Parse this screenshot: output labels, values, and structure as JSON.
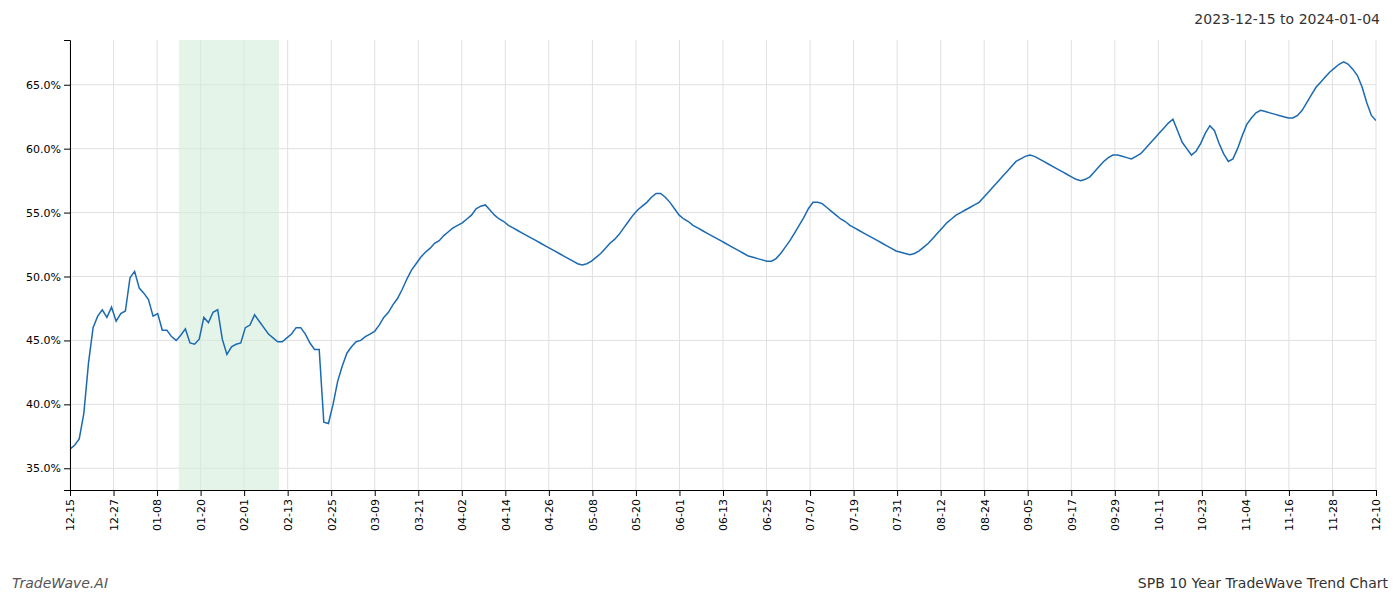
{
  "chart_data": {
    "type": "line",
    "title": "2023-12-15 to 2024-01-04",
    "annotations": [
      "TradeWave.AI",
      "SPB 10 Year TradeWave Trend Chart"
    ],
    "highlight": {
      "x": [
        2.5,
        4.8
      ],
      "color": "#d4edda"
    },
    "grid": true,
    "xlim": [
      0,
      30
    ],
    "xticks": [
      {
        "value": 0,
        "label": "12-15"
      },
      {
        "value": 1,
        "label": "12-27"
      },
      {
        "value": 2,
        "label": "01-08"
      },
      {
        "value": 3,
        "label": "01-20"
      },
      {
        "value": 4,
        "label": "02-01"
      },
      {
        "value": 5,
        "label": "02-13"
      },
      {
        "value": 6,
        "label": "02-25"
      },
      {
        "value": 7,
        "label": "03-09"
      },
      {
        "value": 8,
        "label": "03-21"
      },
      {
        "value": 9,
        "label": "04-02"
      },
      {
        "value": 10,
        "label": "04-14"
      },
      {
        "value": 11,
        "label": "04-26"
      },
      {
        "value": 12,
        "label": "05-08"
      },
      {
        "value": 13,
        "label": "05-20"
      },
      {
        "value": 14,
        "label": "06-01"
      },
      {
        "value": 15,
        "label": "06-13"
      },
      {
        "value": 16,
        "label": "06-25"
      },
      {
        "value": 17,
        "label": "07-07"
      },
      {
        "value": 18,
        "label": "07-19"
      },
      {
        "value": 19,
        "label": "07-31"
      },
      {
        "value": 20,
        "label": "08-12"
      },
      {
        "value": 21,
        "label": "08-24"
      },
      {
        "value": 22,
        "label": "09-05"
      },
      {
        "value": 23,
        "label": "09-17"
      },
      {
        "value": 24,
        "label": "09-29"
      },
      {
        "value": 25,
        "label": "10-11"
      },
      {
        "value": 26,
        "label": "10-23"
      },
      {
        "value": 27,
        "label": "11-04"
      },
      {
        "value": 28,
        "label": "11-16"
      },
      {
        "value": 29,
        "label": "11-28"
      },
      {
        "value": 30,
        "label": "12-10"
      }
    ],
    "ylim": [
      0.333,
      0.685
    ],
    "yticks": [
      {
        "value": 0.35,
        "label": "35.0%"
      },
      {
        "value": 0.4,
        "label": "40.0%"
      },
      {
        "value": 0.45,
        "label": "45.0%"
      },
      {
        "value": 0.5,
        "label": "50.0%"
      },
      {
        "value": 0.55,
        "label": "55.0%"
      },
      {
        "value": 0.6,
        "label": "60.0%"
      },
      {
        "value": 0.65,
        "label": "65.0%"
      }
    ],
    "series": [
      {
        "color": "#1b6ab1",
        "values": [
          0.365,
          0.368,
          0.373,
          0.393,
          0.432,
          0.46,
          0.469,
          0.474,
          0.468,
          0.476,
          0.465,
          0.471,
          0.473,
          0.499,
          0.504,
          0.491,
          0.487,
          0.482,
          0.469,
          0.471,
          0.458,
          0.458,
          0.453,
          0.45,
          0.454,
          0.459,
          0.448,
          0.447,
          0.451,
          0.468,
          0.464,
          0.472,
          0.474,
          0.451,
          0.439,
          0.445,
          0.447,
          0.448,
          0.46,
          0.462,
          0.47,
          0.465,
          0.46,
          0.455,
          0.452,
          0.449,
          0.449,
          0.452,
          0.455,
          0.46,
          0.46,
          0.455,
          0.448,
          0.443,
          0.443,
          0.386,
          0.385,
          0.4,
          0.418,
          0.43,
          0.44,
          0.445,
          0.449,
          0.45,
          0.453,
          0.455,
          0.457,
          0.462,
          0.468,
          0.472,
          0.478,
          0.483,
          0.49,
          0.498,
          0.505,
          0.51,
          0.515,
          0.519,
          0.522,
          0.526,
          0.528,
          0.532,
          0.535,
          0.538,
          0.54,
          0.542,
          0.545,
          0.548,
          0.553,
          0.555,
          0.556,
          0.552,
          0.548,
          0.545,
          0.543,
          0.54,
          0.538,
          0.536,
          0.534,
          0.532,
          0.53,
          0.528,
          0.526,
          0.524,
          0.522,
          0.52,
          0.518,
          0.516,
          0.514,
          0.512,
          0.51,
          0.509,
          0.51,
          0.512,
          0.515,
          0.518,
          0.522,
          0.526,
          0.529,
          0.533,
          0.538,
          0.543,
          0.548,
          0.552,
          0.555,
          0.558,
          0.562,
          0.565,
          0.565,
          0.562,
          0.558,
          0.553,
          0.548,
          0.545,
          0.543,
          0.54,
          0.538,
          0.536,
          0.534,
          0.532,
          0.53,
          0.528,
          0.526,
          0.524,
          0.522,
          0.52,
          0.518,
          0.516,
          0.515,
          0.514,
          0.513,
          0.512,
          0.512,
          0.514,
          0.518,
          0.523,
          0.528,
          0.534,
          0.54,
          0.546,
          0.553,
          0.558,
          0.558,
          0.557,
          0.554,
          0.551,
          0.548,
          0.545,
          0.543,
          0.54,
          0.538,
          0.536,
          0.534,
          0.532,
          0.53,
          0.528,
          0.526,
          0.524,
          0.522,
          0.52,
          0.519,
          0.518,
          0.517,
          0.518,
          0.52,
          0.523,
          0.526,
          0.53,
          0.534,
          0.538,
          0.542,
          0.545,
          0.548,
          0.55,
          0.552,
          0.554,
          0.556,
          0.558,
          0.562,
          0.566,
          0.57,
          0.574,
          0.578,
          0.582,
          0.586,
          0.59,
          0.592,
          0.594,
          0.595,
          0.594,
          0.592,
          0.59,
          0.588,
          0.586,
          0.584,
          0.582,
          0.58,
          0.578,
          0.576,
          0.575,
          0.576,
          0.578,
          0.582,
          0.586,
          0.59,
          0.593,
          0.595,
          0.595,
          0.594,
          0.593,
          0.592,
          0.594,
          0.596,
          0.6,
          0.604,
          0.608,
          0.612,
          0.616,
          0.62,
          0.623,
          0.614,
          0.605,
          0.6,
          0.595,
          0.598,
          0.604,
          0.612,
          0.618,
          0.614,
          0.604,
          0.596,
          0.59,
          0.592,
          0.6,
          0.61,
          0.619,
          0.624,
          0.628,
          0.63,
          0.629,
          0.628,
          0.627,
          0.626,
          0.625,
          0.624,
          0.624,
          0.626,
          0.63,
          0.636,
          0.642,
          0.648,
          0.652,
          0.656,
          0.66,
          0.663,
          0.666,
          0.668,
          0.666,
          0.662,
          0.657,
          0.648,
          0.636,
          0.626,
          0.622
        ]
      }
    ]
  }
}
